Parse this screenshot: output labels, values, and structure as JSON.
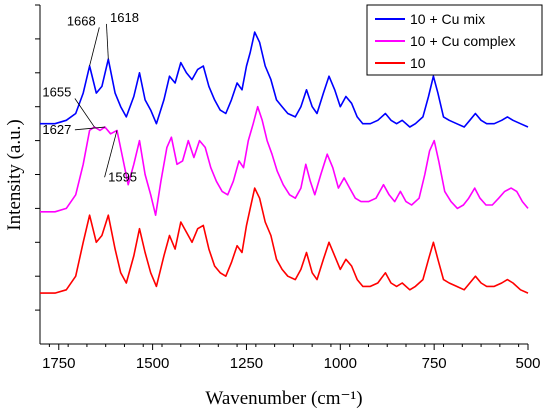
{
  "chart_data": {
    "type": "line",
    "title": "",
    "xlabel": "Wavenumber (cm⁻¹)",
    "ylabel": "Intensity (a.u.)",
    "xlim": [
      1800,
      500
    ],
    "x_reversed": true,
    "ylim": [
      0,
      100
    ],
    "y_tick_labels_shown": false,
    "x_ticks": [
      1750,
      1500,
      1250,
      1000,
      750,
      500
    ],
    "x_tick_labels": [
      "1750",
      "1500",
      "1250",
      "1000",
      "750",
      "500"
    ],
    "grid": false,
    "legend_position": "top-right",
    "series": [
      {
        "name": "10 + Cu mix",
        "color": "#0000ff",
        "points": [
          [
            1800,
            65
          ],
          [
            1760,
            65
          ],
          [
            1730,
            66
          ],
          [
            1705,
            68
          ],
          [
            1685,
            74
          ],
          [
            1668,
            82
          ],
          [
            1650,
            74
          ],
          [
            1635,
            76
          ],
          [
            1618,
            84
          ],
          [
            1600,
            74
          ],
          [
            1585,
            70
          ],
          [
            1570,
            67
          ],
          [
            1550,
            73
          ],
          [
            1535,
            80
          ],
          [
            1520,
            72
          ],
          [
            1505,
            69
          ],
          [
            1490,
            65
          ],
          [
            1470,
            72
          ],
          [
            1455,
            79
          ],
          [
            1440,
            77
          ],
          [
            1425,
            83
          ],
          [
            1410,
            80
          ],
          [
            1395,
            78
          ],
          [
            1380,
            81
          ],
          [
            1365,
            82
          ],
          [
            1350,
            76
          ],
          [
            1335,
            72
          ],
          [
            1320,
            69
          ],
          [
            1305,
            68
          ],
          [
            1290,
            72
          ],
          [
            1275,
            77
          ],
          [
            1262,
            75
          ],
          [
            1250,
            82
          ],
          [
            1240,
            86
          ],
          [
            1228,
            92
          ],
          [
            1215,
            89
          ],
          [
            1200,
            82
          ],
          [
            1185,
            78
          ],
          [
            1170,
            72
          ],
          [
            1155,
            70
          ],
          [
            1140,
            68
          ],
          [
            1120,
            67
          ],
          [
            1105,
            70
          ],
          [
            1090,
            75
          ],
          [
            1075,
            70
          ],
          [
            1062,
            68
          ],
          [
            1045,
            74
          ],
          [
            1030,
            79
          ],
          [
            1015,
            75
          ],
          [
            1000,
            70
          ],
          [
            985,
            73
          ],
          [
            970,
            71
          ],
          [
            955,
            67
          ],
          [
            940,
            65
          ],
          [
            920,
            65
          ],
          [
            900,
            66
          ],
          [
            880,
            68
          ],
          [
            865,
            66
          ],
          [
            850,
            65
          ],
          [
            835,
            66
          ],
          [
            815,
            64
          ],
          [
            800,
            65
          ],
          [
            780,
            67
          ],
          [
            765,
            73
          ],
          [
            752,
            79
          ],
          [
            740,
            74
          ],
          [
            725,
            67
          ],
          [
            710,
            66
          ],
          [
            690,
            65
          ],
          [
            670,
            64
          ],
          [
            655,
            66
          ],
          [
            640,
            68
          ],
          [
            625,
            66
          ],
          [
            610,
            65
          ],
          [
            590,
            65
          ],
          [
            570,
            66
          ],
          [
            555,
            67
          ],
          [
            540,
            66
          ],
          [
            520,
            65
          ],
          [
            500,
            64
          ]
        ]
      },
      {
        "name": "10 + Cu complex",
        "color": "#ff00ff",
        "points": [
          [
            1800,
            39
          ],
          [
            1760,
            39
          ],
          [
            1730,
            40
          ],
          [
            1705,
            44
          ],
          [
            1685,
            53
          ],
          [
            1668,
            63
          ],
          [
            1655,
            64
          ],
          [
            1640,
            63
          ],
          [
            1627,
            64
          ],
          [
            1612,
            62
          ],
          [
            1595,
            63
          ],
          [
            1580,
            55
          ],
          [
            1565,
            47
          ],
          [
            1550,
            53
          ],
          [
            1535,
            60
          ],
          [
            1520,
            50
          ],
          [
            1505,
            44
          ],
          [
            1492,
            38
          ],
          [
            1478,
            48
          ],
          [
            1462,
            58
          ],
          [
            1450,
            61
          ],
          [
            1435,
            53
          ],
          [
            1420,
            54
          ],
          [
            1405,
            60
          ],
          [
            1390,
            55
          ],
          [
            1375,
            60
          ],
          [
            1360,
            58
          ],
          [
            1345,
            52
          ],
          [
            1330,
            48
          ],
          [
            1315,
            45
          ],
          [
            1300,
            44
          ],
          [
            1285,
            48
          ],
          [
            1270,
            54
          ],
          [
            1258,
            52
          ],
          [
            1245,
            60
          ],
          [
            1232,
            65
          ],
          [
            1220,
            70
          ],
          [
            1208,
            66
          ],
          [
            1195,
            60
          ],
          [
            1182,
            56
          ],
          [
            1168,
            51
          ],
          [
            1152,
            47
          ],
          [
            1135,
            44
          ],
          [
            1120,
            43
          ],
          [
            1105,
            46
          ],
          [
            1092,
            53
          ],
          [
            1080,
            48
          ],
          [
            1068,
            44
          ],
          [
            1052,
            50
          ],
          [
            1035,
            56
          ],
          [
            1020,
            52
          ],
          [
            1005,
            46
          ],
          [
            990,
            49
          ],
          [
            975,
            46
          ],
          [
            960,
            43
          ],
          [
            945,
            42
          ],
          [
            925,
            42
          ],
          [
            905,
            43
          ],
          [
            885,
            47
          ],
          [
            870,
            44
          ],
          [
            855,
            42
          ],
          [
            840,
            45
          ],
          [
            825,
            42
          ],
          [
            810,
            41
          ],
          [
            790,
            43
          ],
          [
            775,
            50
          ],
          [
            762,
            57
          ],
          [
            750,
            60
          ],
          [
            738,
            54
          ],
          [
            722,
            45
          ],
          [
            705,
            42
          ],
          [
            688,
            40
          ],
          [
            672,
            41
          ],
          [
            658,
            43
          ],
          [
            642,
            46
          ],
          [
            628,
            43
          ],
          [
            612,
            41
          ],
          [
            595,
            41
          ],
          [
            578,
            43
          ],
          [
            562,
            45
          ],
          [
            545,
            46
          ],
          [
            530,
            45
          ],
          [
            515,
            42
          ],
          [
            500,
            40
          ]
        ]
      },
      {
        "name": "10",
        "color": "#ff0000",
        "points": [
          [
            1800,
            15
          ],
          [
            1760,
            15
          ],
          [
            1730,
            16
          ],
          [
            1705,
            20
          ],
          [
            1685,
            30
          ],
          [
            1668,
            38
          ],
          [
            1650,
            30
          ],
          [
            1635,
            32
          ],
          [
            1618,
            38
          ],
          [
            1600,
            28
          ],
          [
            1585,
            21
          ],
          [
            1570,
            18
          ],
          [
            1550,
            26
          ],
          [
            1535,
            34
          ],
          [
            1520,
            27
          ],
          [
            1505,
            21
          ],
          [
            1490,
            17
          ],
          [
            1470,
            26
          ],
          [
            1455,
            32
          ],
          [
            1440,
            28
          ],
          [
            1425,
            36
          ],
          [
            1410,
            33
          ],
          [
            1395,
            30
          ],
          [
            1380,
            34
          ],
          [
            1365,
            35
          ],
          [
            1350,
            28
          ],
          [
            1335,
            23
          ],
          [
            1320,
            21
          ],
          [
            1305,
            20
          ],
          [
            1290,
            24
          ],
          [
            1275,
            29
          ],
          [
            1262,
            27
          ],
          [
            1250,
            35
          ],
          [
            1240,
            40
          ],
          [
            1228,
            46
          ],
          [
            1215,
            43
          ],
          [
            1200,
            36
          ],
          [
            1185,
            32
          ],
          [
            1170,
            25
          ],
          [
            1155,
            22
          ],
          [
            1140,
            20
          ],
          [
            1120,
            19
          ],
          [
            1105,
            22
          ],
          [
            1090,
            27
          ],
          [
            1075,
            21
          ],
          [
            1062,
            19
          ],
          [
            1045,
            25
          ],
          [
            1030,
            30
          ],
          [
            1015,
            26
          ],
          [
            1000,
            22
          ],
          [
            985,
            25
          ],
          [
            970,
            23
          ],
          [
            955,
            19
          ],
          [
            940,
            17
          ],
          [
            920,
            17
          ],
          [
            900,
            18
          ],
          [
            880,
            21
          ],
          [
            865,
            18
          ],
          [
            850,
            17
          ],
          [
            835,
            18
          ],
          [
            815,
            16
          ],
          [
            800,
            17
          ],
          [
            780,
            19
          ],
          [
            765,
            25
          ],
          [
            752,
            30
          ],
          [
            740,
            25
          ],
          [
            725,
            19
          ],
          [
            710,
            18
          ],
          [
            690,
            17
          ],
          [
            670,
            16
          ],
          [
            655,
            18
          ],
          [
            640,
            20
          ],
          [
            625,
            18
          ],
          [
            610,
            17
          ],
          [
            590,
            17
          ],
          [
            570,
            18
          ],
          [
            555,
            19
          ],
          [
            540,
            18
          ],
          [
            520,
            16
          ],
          [
            500,
            15
          ]
        ]
      }
    ],
    "annotations": [
      {
        "label": "1668",
        "target": [
          1668,
          82
        ],
        "anchor": [
          1690,
          94
        ]
      },
      {
        "label": "1618",
        "target": [
          1618,
          84
        ],
        "anchor": [
          1575,
          95
        ]
      },
      {
        "label": "1655",
        "target": [
          1655,
          64
        ],
        "anchor": [
          1755,
          73
        ]
      },
      {
        "label": "1627",
        "target": [
          1627,
          64
        ],
        "anchor": [
          1755,
          62
        ]
      },
      {
        "label": "1595",
        "target": [
          1595,
          63
        ],
        "anchor": [
          1580,
          48
        ]
      }
    ]
  }
}
